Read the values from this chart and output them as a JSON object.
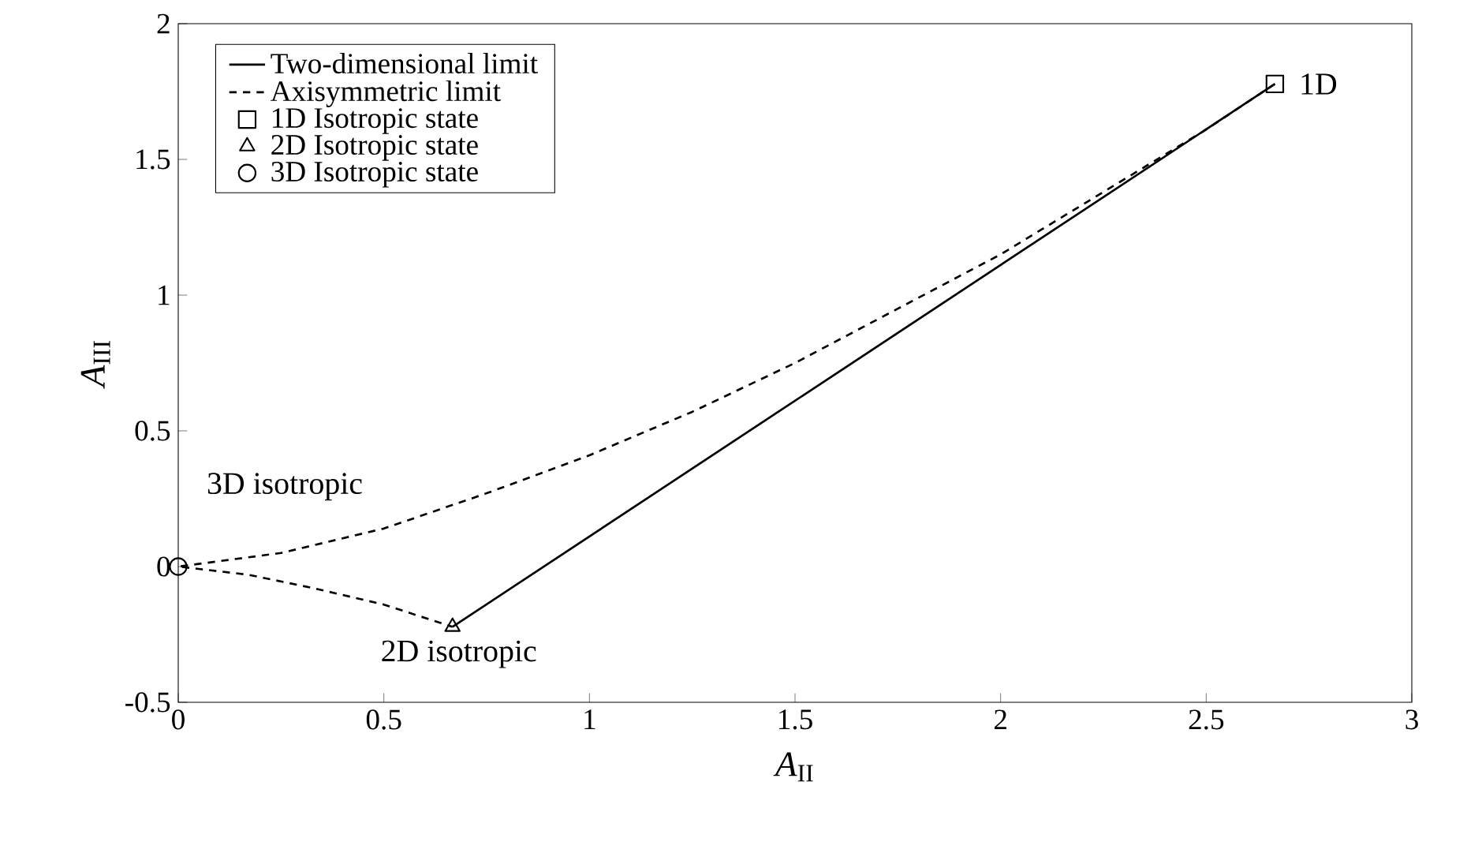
{
  "chart_data": {
    "type": "line",
    "xlabel": "*A*$_{II}$",
    "ylabel": "*A*$_{III}$",
    "xlim": [
      0,
      3
    ],
    "ylim": [
      -0.5,
      2
    ],
    "xticks": [
      0,
      0.5,
      1,
      1.5,
      2,
      2.5,
      3
    ],
    "yticks": [
      -0.5,
      0,
      0.5,
      1,
      1.5,
      2
    ],
    "grid": false,
    "legend": "top left",
    "series": [
      {
        "name": "Two-dimensional limit",
        "color": "#000000",
        "line_style": "solid",
        "marker": "none",
        "x": [
          0.667,
          2.667
        ],
        "values": [
          -0.222,
          1.778
        ]
      },
      {
        "name": "Axisymmetric limit",
        "color": "#000000",
        "line_style": "dashed",
        "marker": "none",
        "x": [
          2.667,
          2.5,
          2.25,
          2,
          1.75,
          1.5,
          1.25,
          1,
          0.75,
          0.5,
          0.25,
          0,
          0.17,
          0.33,
          0.5,
          0.667
        ],
        "values": [
          1.778,
          1.61,
          1.38,
          1.15,
          0.95,
          0.75,
          0.57,
          0.41,
          0.27,
          0.14,
          0.05,
          0,
          -0.03,
          -0.08,
          -0.14,
          -0.222
        ]
      },
      {
        "name": "1D Isotropic state",
        "type": "scatter",
        "color": "#000000",
        "marker": "square",
        "x": [
          2.667
        ],
        "values": [
          1.778
        ]
      },
      {
        "name": "2D Isotropic state",
        "type": "scatter",
        "color": "#000000",
        "marker": "triangle",
        "x": [
          0.667
        ],
        "values": [
          -0.222
        ]
      },
      {
        "name": "3D Isotropic state",
        "type": "scatter",
        "color": "#000000",
        "marker": "circle",
        "x": [
          0
        ],
        "values": [
          0
        ]
      }
    ],
    "annotations": [
      {
        "text": "1D",
        "x": 2.667,
        "y": 1.778
      },
      {
        "text": "3D isotropic",
        "x": 0,
        "y": 0
      },
      {
        "text": "2D isotropic",
        "x": 0.667,
        "y": -0.222
      }
    ]
  }
}
